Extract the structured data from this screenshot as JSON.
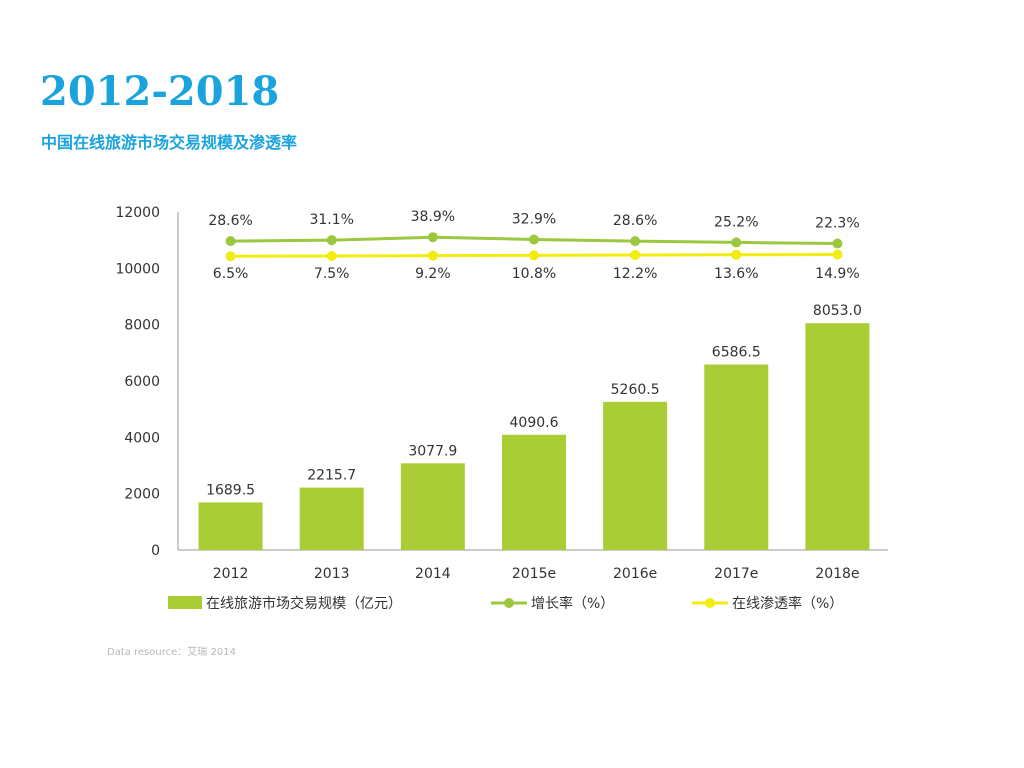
{
  "page": {
    "title": "2012-2018",
    "subtitle": "中国在线旅游市场交易规模及渗透率",
    "source": "Data resource：艾瑞  2014"
  },
  "colors": {
    "accent": "#1aa3dd",
    "bar": "#aacd35",
    "growth_line": "#9bc83e",
    "penetration_line": "#f2ec10"
  },
  "chart_data": {
    "type": "bar",
    "categories": [
      "2012",
      "2013",
      "2014",
      "2015e",
      "2016e",
      "2017e",
      "2018e"
    ],
    "ylim": [
      0,
      12000
    ],
    "yticks": [
      "0",
      "2000",
      "4000",
      "6000",
      "8000",
      "10000",
      "12000"
    ],
    "series": [
      {
        "name": "在线旅游市场交易规模（亿元）",
        "type": "bar",
        "values": [
          1689.5,
          2215.7,
          3077.9,
          4090.6,
          5260.5,
          6586.5,
          8053.0
        ],
        "labels": [
          "1689.5",
          "2215.7",
          "3077.9",
          "4090.6",
          "5260.5",
          "6586.5",
          "8053.0"
        ]
      },
      {
        "name": "增长率（%）",
        "type": "line",
        "values": [
          28.6,
          31.1,
          38.9,
          32.9,
          28.6,
          25.2,
          22.3
        ],
        "labels": [
          "28.6%",
          "31.1%",
          "38.9%",
          "32.9%",
          "28.6%",
          "25.2%",
          "22.3%"
        ]
      },
      {
        "name": "在线渗透率（%）",
        "type": "line",
        "values": [
          6.5,
          7.5,
          9.2,
          10.8,
          12.2,
          13.6,
          14.9
        ],
        "labels": [
          "6.5%",
          "7.5%",
          "9.2%",
          "10.8%",
          "12.2%",
          "13.6%",
          "14.9%"
        ]
      }
    ],
    "legend_position": "bottom",
    "grid": false
  }
}
